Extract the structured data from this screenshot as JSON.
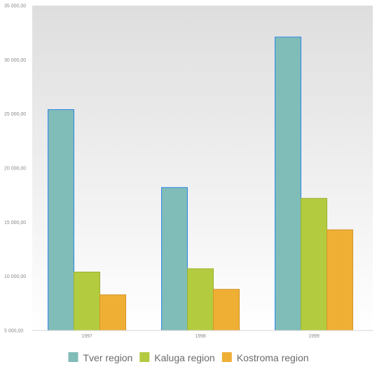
{
  "chart_data": {
    "type": "bar",
    "title": "",
    "xlabel": "",
    "ylabel": "",
    "categories": [
      "1997",
      "1998",
      "1999"
    ],
    "series": [
      {
        "name": "Tver region",
        "values": [
          25400,
          18200,
          32100
        ],
        "color": "#80bcb8",
        "stroke": "#2e86e8"
      },
      {
        "name": "Kaluga region",
        "values": [
          10400,
          10700,
          17200
        ],
        "color": "#b3cb3f",
        "stroke": "#9cb032"
      },
      {
        "name": "Kostroma region",
        "values": [
          8300,
          8800,
          14300
        ],
        "color": "#efaf35",
        "stroke": "#d2942a"
      }
    ],
    "ylim": [
      5000,
      35000
    ],
    "yticks": [
      5000,
      10000,
      15000,
      20000,
      25000,
      30000,
      35000
    ],
    "ytick_labels": [
      "5 000,00",
      "10 000,00",
      "15 000,00",
      "20 000,00",
      "25 000,00",
      "30 000,00",
      "35 000,00"
    ],
    "grid": false,
    "legend_position": "bottom",
    "plot_background": [
      "#dedede",
      "#ffffff"
    ]
  }
}
